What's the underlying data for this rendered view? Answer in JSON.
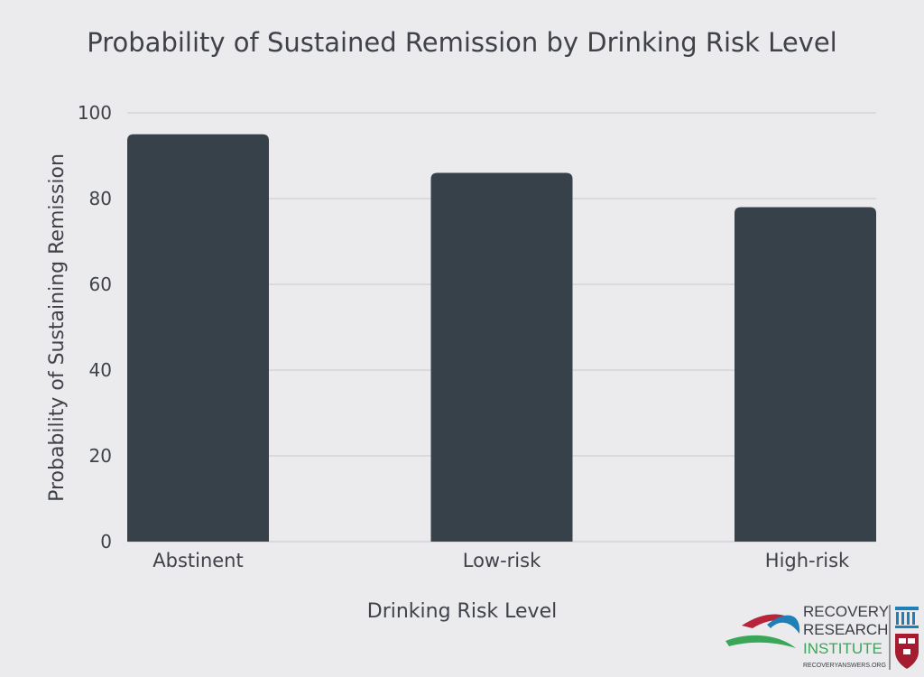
{
  "chart_data": {
    "type": "bar",
    "title": "Probability of Sustained Remission by Drinking Risk Level",
    "xlabel": "Drinking Risk Level",
    "ylabel": "Probability of Sustaining Remission",
    "categories": [
      "Abstinent",
      "Low-risk",
      "High-risk"
    ],
    "values": [
      95,
      86,
      78
    ],
    "ylim": [
      0,
      100
    ],
    "yticks": [
      0,
      20,
      40,
      60,
      80,
      100
    ],
    "grid": true,
    "bar_color": "#37414a"
  },
  "logo": {
    "line1": "RECOVERY",
    "line2": "RESEARCH",
    "line3": "INSTITUTE",
    "url": "RECOVERYANSWERS.ORG",
    "colors": {
      "red": "#b8243a",
      "blue": "#1f7fb6",
      "green": "#3aa657",
      "text": "#3b3e44"
    }
  }
}
